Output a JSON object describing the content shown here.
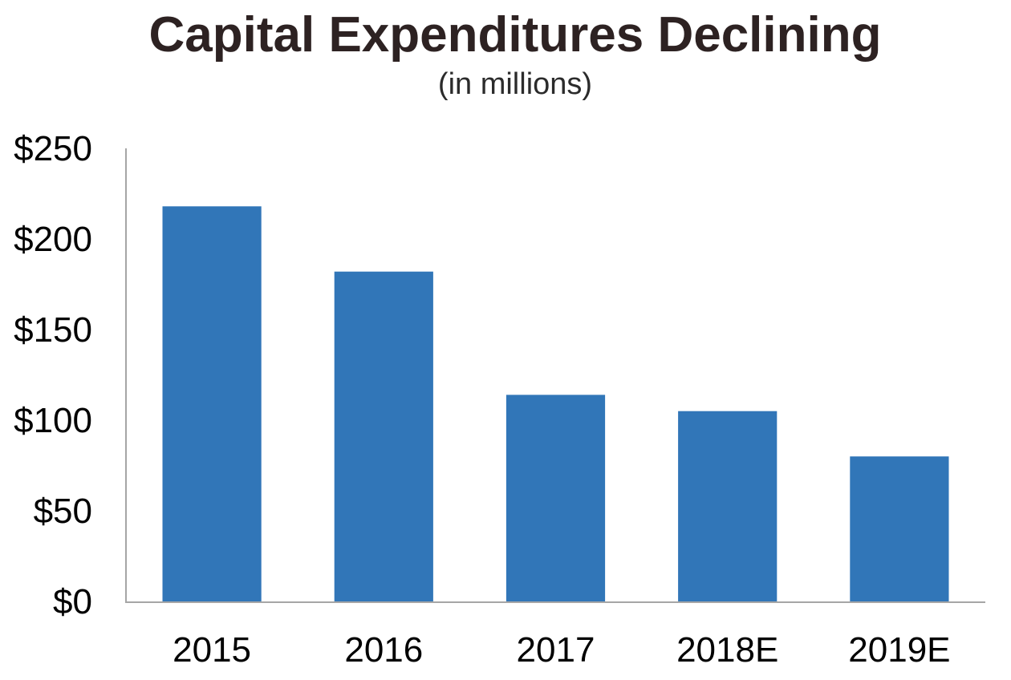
{
  "chart_data": {
    "type": "bar",
    "title": "Capital Expenditures Declining",
    "subtitle": "(in millions)",
    "xlabel": "",
    "ylabel": "",
    "categories": [
      "2015",
      "2016",
      "2017",
      "2018E",
      "2019E"
    ],
    "values": [
      218,
      182,
      114,
      105,
      80
    ],
    "ylim": [
      0,
      250
    ],
    "yticks": [
      0,
      50,
      100,
      150,
      200,
      250
    ],
    "ytick_labels": [
      "$0",
      "$50",
      "$100",
      "$150",
      "$200",
      "$250"
    ],
    "grid": false,
    "legend": "none",
    "bar_color": "#3176b8",
    "axis_color": "#a6a6a6"
  }
}
